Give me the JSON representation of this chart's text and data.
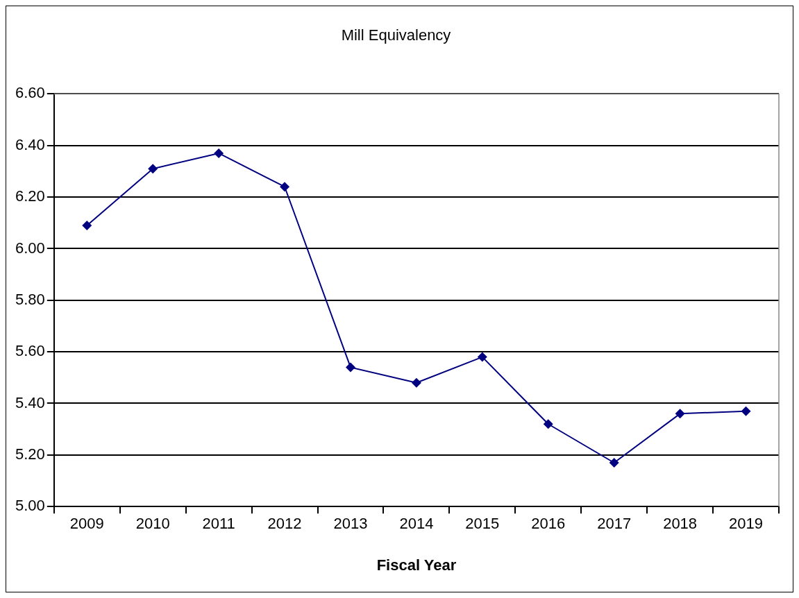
{
  "chart_data": {
    "type": "line",
    "title": "Mill Equivalency",
    "xlabel": "Fiscal Year",
    "categories": [
      "2009",
      "2010",
      "2011",
      "2012",
      "2013",
      "2014",
      "2015",
      "2016",
      "2017",
      "2018",
      "2019"
    ],
    "series": [
      {
        "color": "#000080",
        "values": [
          6.09,
          6.31,
          6.37,
          6.24,
          5.54,
          5.48,
          5.58,
          5.32,
          5.17,
          5.36,
          5.37
        ]
      }
    ],
    "ylim": [
      5.0,
      6.6
    ],
    "yticks": [
      {
        "value": 5.0,
        "label": "5.00"
      },
      {
        "value": 5.2,
        "label": "5.20"
      },
      {
        "value": 5.4,
        "label": "5.40"
      },
      {
        "value": 5.6,
        "label": "5.60"
      },
      {
        "value": 5.8,
        "label": "5.80"
      },
      {
        "value": 6.0,
        "label": "6.00"
      },
      {
        "value": 6.2,
        "label": "6.20"
      },
      {
        "value": 6.4,
        "label": "6.40"
      },
      {
        "value": 6.6,
        "label": "6.60"
      }
    ],
    "grid": "y",
    "legend": false,
    "marker": "diamond",
    "line_style": "solid"
  }
}
